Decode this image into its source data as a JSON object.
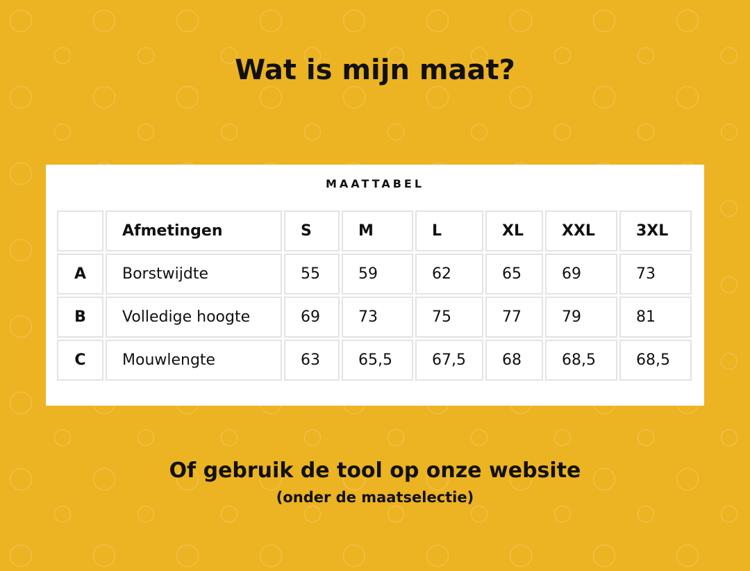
{
  "title": "Wat is mijn maat?",
  "table": {
    "title": "MAATTABEL",
    "headers": [
      "",
      "Afmetingen",
      "S",
      "M",
      "L",
      "XL",
      "XXL",
      "3XL"
    ],
    "rows": [
      [
        "A",
        "Borstwijdte",
        "55",
        "59",
        "62",
        "65",
        "69",
        "73"
      ],
      [
        "B",
        "Volledige hoogte",
        "69",
        "73",
        "75",
        "77",
        "79",
        "81"
      ],
      [
        "C",
        "Mouwlengte",
        "63",
        "65,5",
        "67,5",
        "68",
        "68,5",
        "68,5"
      ]
    ]
  },
  "footer": {
    "line1": "Of gebruik de tool op onze website",
    "line2": "(onder de maatselectie)"
  },
  "colors": {
    "background": "#ECB322",
    "card": "#FFFFFF",
    "text": "#111111"
  }
}
